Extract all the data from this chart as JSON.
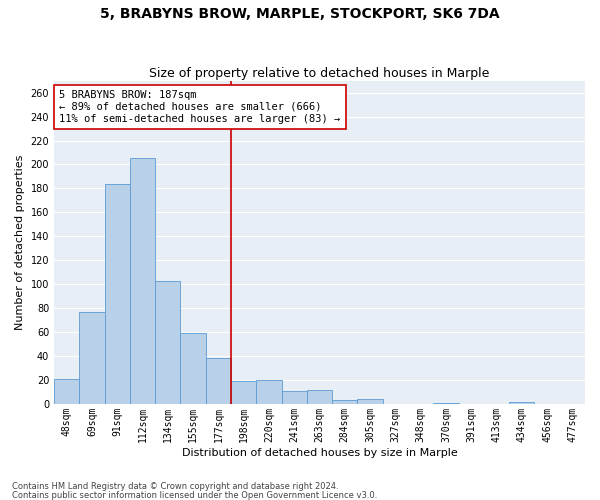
{
  "title": "5, BRABYNS BROW, MARPLE, STOCKPORT, SK6 7DA",
  "subtitle": "Size of property relative to detached houses in Marple",
  "xlabel": "Distribution of detached houses by size in Marple",
  "ylabel": "Number of detached properties",
  "categories": [
    "48sqm",
    "69sqm",
    "91sqm",
    "112sqm",
    "134sqm",
    "155sqm",
    "177sqm",
    "198sqm",
    "220sqm",
    "241sqm",
    "263sqm",
    "284sqm",
    "305sqm",
    "327sqm",
    "348sqm",
    "370sqm",
    "391sqm",
    "413sqm",
    "434sqm",
    "456sqm",
    "477sqm"
  ],
  "values": [
    21,
    77,
    184,
    205,
    103,
    59,
    38,
    19,
    20,
    11,
    12,
    3,
    4,
    0,
    0,
    1,
    0,
    0,
    2,
    0,
    0
  ],
  "bar_color": "#b8d0e8",
  "bar_edge_color": "#5b9bd5",
  "vline_position": 6.5,
  "vline_color": "#cc0000",
  "annotation_line1": "5 BRABYNS BROW: 187sqm",
  "annotation_line2": "← 89% of detached houses are smaller (666)",
  "annotation_line3": "11% of semi-detached houses are larger (83) →",
  "annotation_box_color": "#ffffff",
  "annotation_box_edge": "#cc0000",
  "ylim": [
    0,
    270
  ],
  "yticks": [
    0,
    20,
    40,
    60,
    80,
    100,
    120,
    140,
    160,
    180,
    200,
    220,
    240,
    260
  ],
  "bg_color": "#e8eef5",
  "grid_color": "#ffffff",
  "footer_line1": "Contains HM Land Registry data © Crown copyright and database right 2024.",
  "footer_line2": "Contains public sector information licensed under the Open Government Licence v3.0.",
  "title_fontsize": 10,
  "subtitle_fontsize": 9,
  "axis_label_fontsize": 8,
  "tick_fontsize": 7,
  "annotation_fontsize": 7.5
}
